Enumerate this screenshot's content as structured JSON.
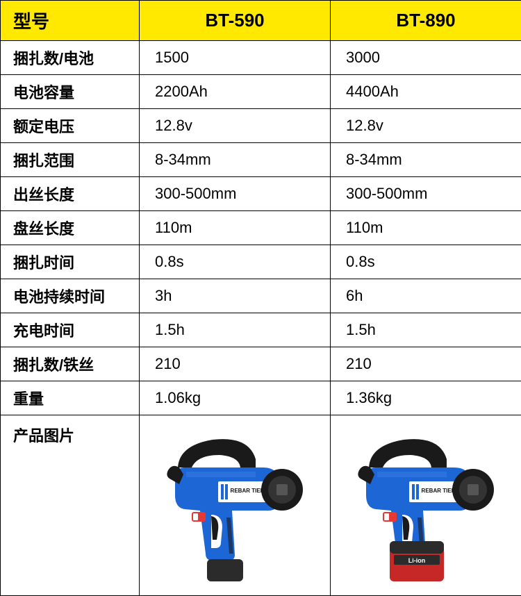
{
  "colors": {
    "header_bg": "#ffe900",
    "border": "#000000",
    "text": "#000000",
    "tool_body": "#1d66d6",
    "tool_dark": "#1a1a1a",
    "tool_light": "#3a7de8",
    "switch_red": "#e53935",
    "battery_red": "#c62828",
    "battery_dark": "#2b2b2b",
    "tool_label_bg": "#ffffff"
  },
  "header": {
    "label": "型号",
    "model1": "BT-590",
    "model2": "BT-890"
  },
  "rows": [
    {
      "label": "捆扎数/电池",
      "v1": "1500",
      "v2": "3000"
    },
    {
      "label": "电池容量",
      "v1": "2200Ah",
      "v2": "4400Ah"
    },
    {
      "label": "额定电压",
      "v1": "12.8v",
      "v2": "12.8v"
    },
    {
      "label": "捆扎范围",
      "v1": "8-34mm",
      "v2": "8-34mm"
    },
    {
      "label": "出丝长度",
      "v1": "300-500mm",
      "v2": "300-500mm"
    },
    {
      "label": "盘丝长度",
      "v1": "110m",
      "v2": "110m"
    },
    {
      "label": "捆扎时间",
      "v1": "0.8s",
      "v2": "0.8s"
    },
    {
      "label": "电池持续时间",
      "v1": "3h",
      "v2": "6h"
    },
    {
      "label": "充电时间",
      "v1": "1.5h",
      "v2": "1.5h"
    },
    {
      "label": "捆扎数/铁丝",
      "v1": "210",
      "v2": "210"
    },
    {
      "label": "重量",
      "v1": "1.06kg",
      "v2": "1.36kg"
    }
  ],
  "image_row_label": "产品图片",
  "tool_label": "REBAR TIER",
  "battery_label": "Li-ion"
}
